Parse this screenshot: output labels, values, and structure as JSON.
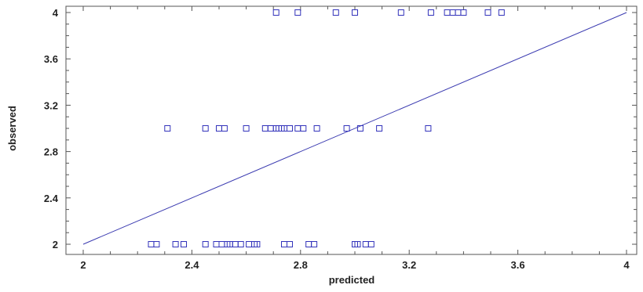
{
  "chart_data": {
    "type": "scatter",
    "title": "",
    "xlabel": "predicted",
    "ylabel": "observed",
    "xlim": [
      2,
      4
    ],
    "ylim": [
      2,
      4
    ],
    "x_ticks": [
      "2",
      "2.4",
      "2.8",
      "3.2",
      "3.6",
      "4"
    ],
    "y_ticks": [
      "2",
      "2.4",
      "2.8",
      "3.2",
      "3.6",
      "4"
    ],
    "grid": false,
    "colors": {
      "points": "#3333bb",
      "line": "#3a3ab0",
      "axes": "#555555"
    },
    "reference_line": {
      "x": [
        2,
        4
      ],
      "y": [
        2,
        4
      ]
    },
    "series": [
      {
        "points": [
          [
            2.25,
            2
          ],
          [
            2.27,
            2
          ],
          [
            2.34,
            2
          ],
          [
            2.37,
            2
          ],
          [
            2.45,
            2
          ],
          [
            2.49,
            2
          ],
          [
            2.51,
            2
          ],
          [
            2.53,
            2
          ],
          [
            2.54,
            2
          ],
          [
            2.56,
            2
          ],
          [
            2.58,
            2
          ],
          [
            2.61,
            2
          ],
          [
            2.63,
            2
          ],
          [
            2.64,
            2
          ],
          [
            2.74,
            2
          ],
          [
            2.76,
            2
          ],
          [
            2.83,
            2
          ],
          [
            2.85,
            2
          ],
          [
            3.0,
            2
          ],
          [
            3.01,
            2
          ],
          [
            3.04,
            2
          ],
          [
            3.06,
            2
          ],
          [
            2.31,
            3
          ],
          [
            2.45,
            3
          ],
          [
            2.5,
            3
          ],
          [
            2.52,
            3
          ],
          [
            2.6,
            3
          ],
          [
            2.67,
            3
          ],
          [
            2.69,
            3
          ],
          [
            2.71,
            3
          ],
          [
            2.72,
            3
          ],
          [
            2.73,
            3
          ],
          [
            2.74,
            3
          ],
          [
            2.76,
            3
          ],
          [
            2.79,
            3
          ],
          [
            2.81,
            3
          ],
          [
            2.86,
            3
          ],
          [
            2.97,
            3
          ],
          [
            3.02,
            3
          ],
          [
            3.09,
            3
          ],
          [
            3.27,
            3
          ],
          [
            2.71,
            4
          ],
          [
            2.79,
            4
          ],
          [
            2.93,
            4
          ],
          [
            3.0,
            4
          ],
          [
            3.17,
            4
          ],
          [
            3.28,
            4
          ],
          [
            3.34,
            4
          ],
          [
            3.36,
            4
          ],
          [
            3.38,
            4
          ],
          [
            3.4,
            4
          ],
          [
            3.49,
            4
          ],
          [
            3.54,
            4
          ]
        ]
      }
    ]
  }
}
